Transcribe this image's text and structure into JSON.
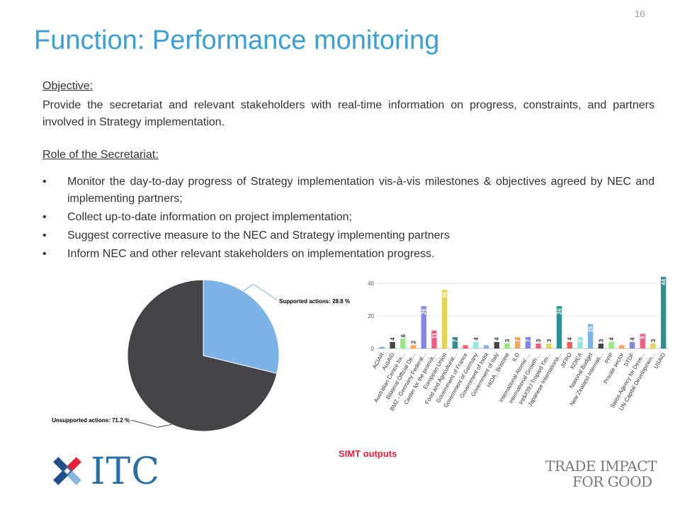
{
  "slide": {
    "page_number": "16",
    "title": "Function: Performance monitoring",
    "objective_label": "Objective:",
    "objective_text": "Provide the secretariat and relevant stakeholders with real-time information on progress, constraints, and partners involved in Strategy implementation.",
    "role_label": "Role of the Secretariat:",
    "role_items": [
      "Monitor the day-to-day progress of Strategy implementation vis-à-vis milestones & objectives agreed by NEC and implementing partners;",
      "Collect up-to-date information on project implementation;",
      "Suggest corrective measure to the NEC and Strategy implementing partners",
      "Inform NEC and other relevant stakeholders on implementation progress."
    ],
    "caption": "SIMT outputs",
    "logo_text": "ITC",
    "tagline_line1": "TRADE IMPACT",
    "tagline_line2": "FOR GOOD"
  },
  "chart_data": [
    {
      "type": "pie",
      "slices": [
        {
          "label": "Supported actions: 28.8 %",
          "value": 28.8,
          "color": "#7db4e8"
        },
        {
          "label": "Unsupported actions: 71.2 %",
          "value": 71.2,
          "color": "#434348"
        }
      ]
    },
    {
      "type": "bar",
      "yticks": [
        0,
        20,
        40
      ],
      "ylim": [
        0,
        45
      ],
      "categories": [
        "ACIAR",
        "AusAID",
        "Australian Centre for...",
        "Bilateral Official De...",
        "BMZ - Germany Federal...",
        "Center for the promot...",
        "European Union",
        "Food and Agricultural...",
        "Government of France",
        "Government of Germany",
        "Government of India",
        "Government of Italy",
        "HIDA , Bristone",
        "ILO",
        "International Atomic ...",
        "International Growth ...",
        "Int&#39;l Tropied Tim...",
        "Japanese Internationa...",
        "JIFRO",
        "KOICA",
        "National Budget",
        "New Zealand Internati...",
        "PPP",
        "Private sector",
        "STDF",
        "Swiss Agency for Deve...",
        "UN Capital Developmen...",
        "USAID"
      ],
      "values": [
        1,
        4,
        6,
        2,
        26,
        11,
        36,
        7,
        2,
        4,
        2,
        4,
        3,
        7,
        7,
        3,
        3,
        26,
        4,
        7,
        15,
        3,
        4,
        2,
        4,
        9,
        3,
        44
      ],
      "labels_shown": [
        null,
        "4",
        "6",
        "2",
        "26",
        "11",
        "36",
        "7",
        null,
        "4",
        null,
        "4",
        "3",
        "7",
        "7",
        "3",
        "3",
        "26",
        "4",
        "7",
        "15",
        "3",
        "4",
        null,
        "4",
        "9",
        "3",
        "44"
      ],
      "colors": [
        "#7db4e8",
        "#434348",
        "#90ed7d",
        "#f7a35c",
        "#8085e9",
        "#f15c80",
        "#e4d354",
        "#2b908f",
        "#f45b5b",
        "#91e8e1",
        "#7db4e8",
        "#434348",
        "#90ed7d",
        "#f7a35c",
        "#8085e9",
        "#f15c80",
        "#e4d354",
        "#2b908f",
        "#f45b5b",
        "#91e8e1",
        "#7db4e8",
        "#434348",
        "#90ed7d",
        "#f7a35c",
        "#8085e9",
        "#f15c80",
        "#e4d354",
        "#2b908f"
      ]
    }
  ]
}
